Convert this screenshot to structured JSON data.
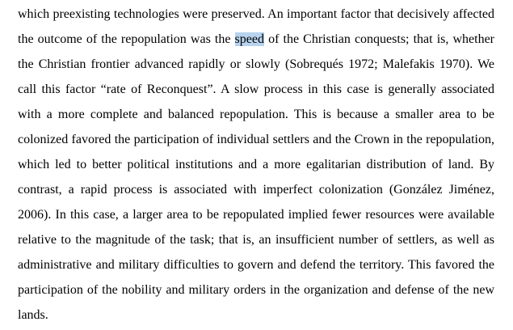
{
  "lines": [
    "which preexisting technologies were preserved. An important factor that decisively affected",
    [
      "the outcome of the repopulation was the ",
      "speed",
      " of the Christian conquests; that is, whether"
    ],
    "the Christian frontier advanced rapidly or slowly (Sobrequés 1972; Malefakis 1970). We",
    "call this factor “rate of Reconquest”. A slow process in this case is generally associated",
    "with a more complete and balanced repopulation. This is because a smaller area to be",
    "colonized favored the participation of individual settlers and the Crown in the repopulation,",
    "which led to better political institutions and a more egalitarian distribution of land. By",
    "contrast, a rapid process is associated with imperfect colonization (González Jiménez,",
    "2006). In this case, a larger area to be repopulated implied fewer resources were available",
    "relative to the magnitude of the task; that is, an insufficient number of settlers, as well as",
    "administrative and military difficulties to govern and defend the territory. This favored the",
    "participation of the nobility and military orders in the organization and defense of the new",
    "lands."
  ]
}
